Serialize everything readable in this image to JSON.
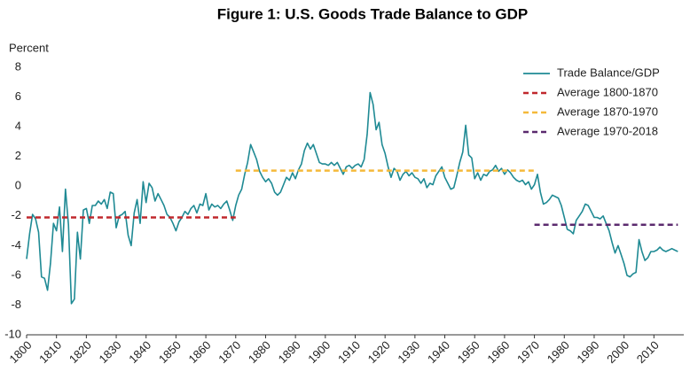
{
  "chart_data": {
    "type": "line",
    "title": "Figure 1: U.S. Goods Trade Balance to GDP",
    "ylabel": "Percent",
    "xlim": [
      1800,
      2020
    ],
    "xticks": [
      1800,
      1810,
      1820,
      1830,
      1840,
      1850,
      1860,
      1870,
      1880,
      1890,
      1900,
      1910,
      1920,
      1930,
      1940,
      1950,
      1960,
      1970,
      1980,
      1990,
      2000,
      2010
    ],
    "ylim": [
      -10,
      8
    ],
    "yticks": [
      -10,
      -8,
      -6,
      -4,
      -2,
      0,
      2,
      4,
      6,
      8
    ],
    "grid": false,
    "legend": "upper right",
    "series": [
      {
        "name": "Trade Balance/GDP",
        "color": "#1f8a94",
        "style": "solid",
        "x": [
          1800,
          1801,
          1802,
          1803,
          1804,
          1805,
          1806,
          1807,
          1808,
          1809,
          1810,
          1811,
          1812,
          1813,
          1814,
          1815,
          1816,
          1817,
          1818,
          1819,
          1820,
          1821,
          1822,
          1823,
          1824,
          1825,
          1826,
          1827,
          1828,
          1829,
          1830,
          1831,
          1832,
          1833,
          1834,
          1835,
          1836,
          1837,
          1838,
          1839,
          1840,
          1841,
          1842,
          1843,
          1844,
          1845,
          1846,
          1847,
          1848,
          1849,
          1850,
          1851,
          1852,
          1853,
          1854,
          1855,
          1856,
          1857,
          1858,
          1859,
          1860,
          1861,
          1862,
          1863,
          1864,
          1865,
          1866,
          1867,
          1868,
          1869,
          1870,
          1871,
          1872,
          1873,
          1874,
          1875,
          1876,
          1877,
          1878,
          1879,
          1880,
          1881,
          1882,
          1883,
          1884,
          1885,
          1886,
          1887,
          1888,
          1889,
          1890,
          1891,
          1892,
          1893,
          1894,
          1895,
          1896,
          1897,
          1898,
          1899,
          1900,
          1901,
          1902,
          1903,
          1904,
          1905,
          1906,
          1907,
          1908,
          1909,
          1910,
          1911,
          1912,
          1913,
          1914,
          1915,
          1916,
          1917,
          1918,
          1919,
          1920,
          1921,
          1922,
          1923,
          1924,
          1925,
          1926,
          1927,
          1928,
          1929,
          1930,
          1931,
          1932,
          1933,
          1934,
          1935,
          1936,
          1937,
          1938,
          1939,
          1940,
          1941,
          1942,
          1943,
          1944,
          1945,
          1946,
          1947,
          1948,
          1949,
          1950,
          1951,
          1952,
          1953,
          1954,
          1955,
          1956,
          1957,
          1958,
          1959,
          1960,
          1961,
          1962,
          1963,
          1964,
          1965,
          1966,
          1967,
          1968,
          1969,
          1970,
          1971,
          1972,
          1973,
          1974,
          1975,
          1976,
          1977,
          1978,
          1979,
          1980,
          1981,
          1982,
          1983,
          1984,
          1985,
          1986,
          1987,
          1988,
          1989,
          1990,
          1991,
          1992,
          1993,
          1994,
          1995,
          1996,
          1997,
          1998,
          1999,
          2000,
          2001,
          2002,
          2003,
          2004,
          2005,
          2006,
          2007,
          2008,
          2009,
          2010,
          2011,
          2012,
          2013,
          2014,
          2015,
          2016,
          2017,
          2018
        ],
        "values": [
          -4.9,
          -3.2,
          -1.9,
          -2.2,
          -3.1,
          -6.1,
          -6.2,
          -7.0,
          -5.2,
          -2.5,
          -3.0,
          -1.4,
          -4.4,
          -0.2,
          -2.6,
          -7.9,
          -7.6,
          -3.1,
          -4.9,
          -1.6,
          -1.5,
          -2.5,
          -1.3,
          -1.3,
          -1.0,
          -1.2,
          -0.9,
          -1.5,
          -0.4,
          -0.5,
          -2.8,
          -2.0,
          -1.9,
          -1.7,
          -3.3,
          -4.0,
          -1.8,
          -0.9,
          -2.5,
          0.3,
          -1.1,
          0.2,
          -0.1,
          -1.0,
          -0.5,
          -0.9,
          -1.3,
          -1.9,
          -2.1,
          -2.5,
          -3.0,
          -2.4,
          -2.1,
          -1.7,
          -1.9,
          -1.5,
          -1.3,
          -1.8,
          -1.2,
          -1.3,
          -0.5,
          -1.6,
          -1.2,
          -1.4,
          -1.3,
          -1.5,
          -1.2,
          -1.0,
          -1.6,
          -2.3,
          -1.3,
          -0.6,
          -0.2,
          0.8,
          1.6,
          2.8,
          2.3,
          1.8,
          1.0,
          0.6,
          0.3,
          0.5,
          0.2,
          -0.4,
          -0.6,
          -0.4,
          0.1,
          0.6,
          0.4,
          0.9,
          0.5,
          1.1,
          1.5,
          2.4,
          2.9,
          2.5,
          2.8,
          2.2,
          1.6,
          1.5,
          1.5,
          1.4,
          1.6,
          1.4,
          1.6,
          1.2,
          0.8,
          1.3,
          1.4,
          1.2,
          1.4,
          1.5,
          1.3,
          1.8,
          3.5,
          6.3,
          5.5,
          3.8,
          4.3,
          2.8,
          2.2,
          1.3,
          0.6,
          1.2,
          1.0,
          0.4,
          0.8,
          1.0,
          0.7,
          0.9,
          0.6,
          0.5,
          0.2,
          0.5,
          -0.1,
          0.2,
          0.1,
          0.7,
          1.0,
          1.3,
          0.6,
          0.2,
          -0.2,
          -0.1,
          0.7,
          1.6,
          2.3,
          4.1,
          2.1,
          1.9,
          0.5,
          0.9,
          0.4,
          0.8,
          0.7,
          1.0,
          1.1,
          1.4,
          1.0,
          1.2,
          0.8,
          1.1,
          0.9,
          0.6,
          0.4,
          0.3,
          0.4,
          0.1,
          0.3,
          -0.2,
          0.1,
          0.8,
          -0.4,
          -1.2,
          -1.1,
          -0.9,
          -0.6,
          -0.7,
          -0.8,
          -1.3,
          -2.1,
          -2.9,
          -3.0,
          -3.2,
          -2.3,
          -2.0,
          -1.7,
          -1.2,
          -1.3,
          -1.7,
          -2.1,
          -2.1,
          -2.2,
          -2.0,
          -2.5,
          -3.0,
          -3.8,
          -4.5,
          -4.0,
          -4.6,
          -5.2,
          -6.0,
          -6.1,
          -5.9,
          -5.8,
          -3.6,
          -4.4,
          -5.0,
          -4.8,
          -4.4,
          -4.4,
          -4.3,
          -4.1,
          -4.3,
          -4.4,
          -4.3,
          -4.2,
          -4.3,
          -4.4
        ]
      },
      {
        "name": "Average 1800-1870",
        "color": "#c0282d",
        "style": "dashed",
        "x": [
          1800,
          1870
        ],
        "values": [
          -2.1,
          -2.1
        ]
      },
      {
        "name": "Average 1870-1970",
        "color": "#f5b93a",
        "style": "dashed",
        "x": [
          1870,
          1970
        ],
        "values": [
          1.05,
          1.05
        ]
      },
      {
        "name": "Average 1970-2018",
        "color": "#5b2a6e",
        "style": "dashed",
        "x": [
          1970,
          2018
        ],
        "values": [
          -2.6,
          -2.6
        ]
      }
    ]
  }
}
